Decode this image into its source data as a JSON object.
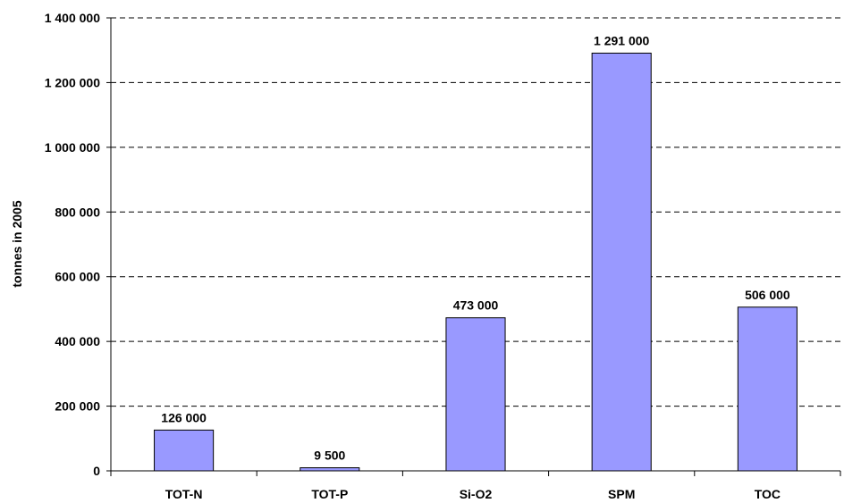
{
  "chart_data": {
    "type": "bar",
    "categories": [
      "TOT-N",
      "TOT-P",
      "Si-O2",
      "SPM",
      "TOC"
    ],
    "values": [
      126000,
      9500,
      473000,
      1291000,
      506000
    ],
    "data_labels": [
      "126 000",
      "9 500",
      "473 000",
      "1 291 000",
      "506 000"
    ],
    "title": "",
    "xlabel": "",
    "ylabel": "tonnes in 2005",
    "ylim": [
      0,
      1400000
    ],
    "yticks": [
      0,
      200000,
      400000,
      600000,
      800000,
      1000000,
      1200000,
      1400000
    ],
    "ytick_labels": [
      "0",
      "200 000",
      "400 000",
      "600 000",
      "800 000",
      "1 000 000",
      "1 200 000",
      "1 400 000"
    ],
    "grid": true,
    "grid_style": "dashed",
    "bar_color": "#9999ff",
    "bar_edge_color": "#000000"
  }
}
